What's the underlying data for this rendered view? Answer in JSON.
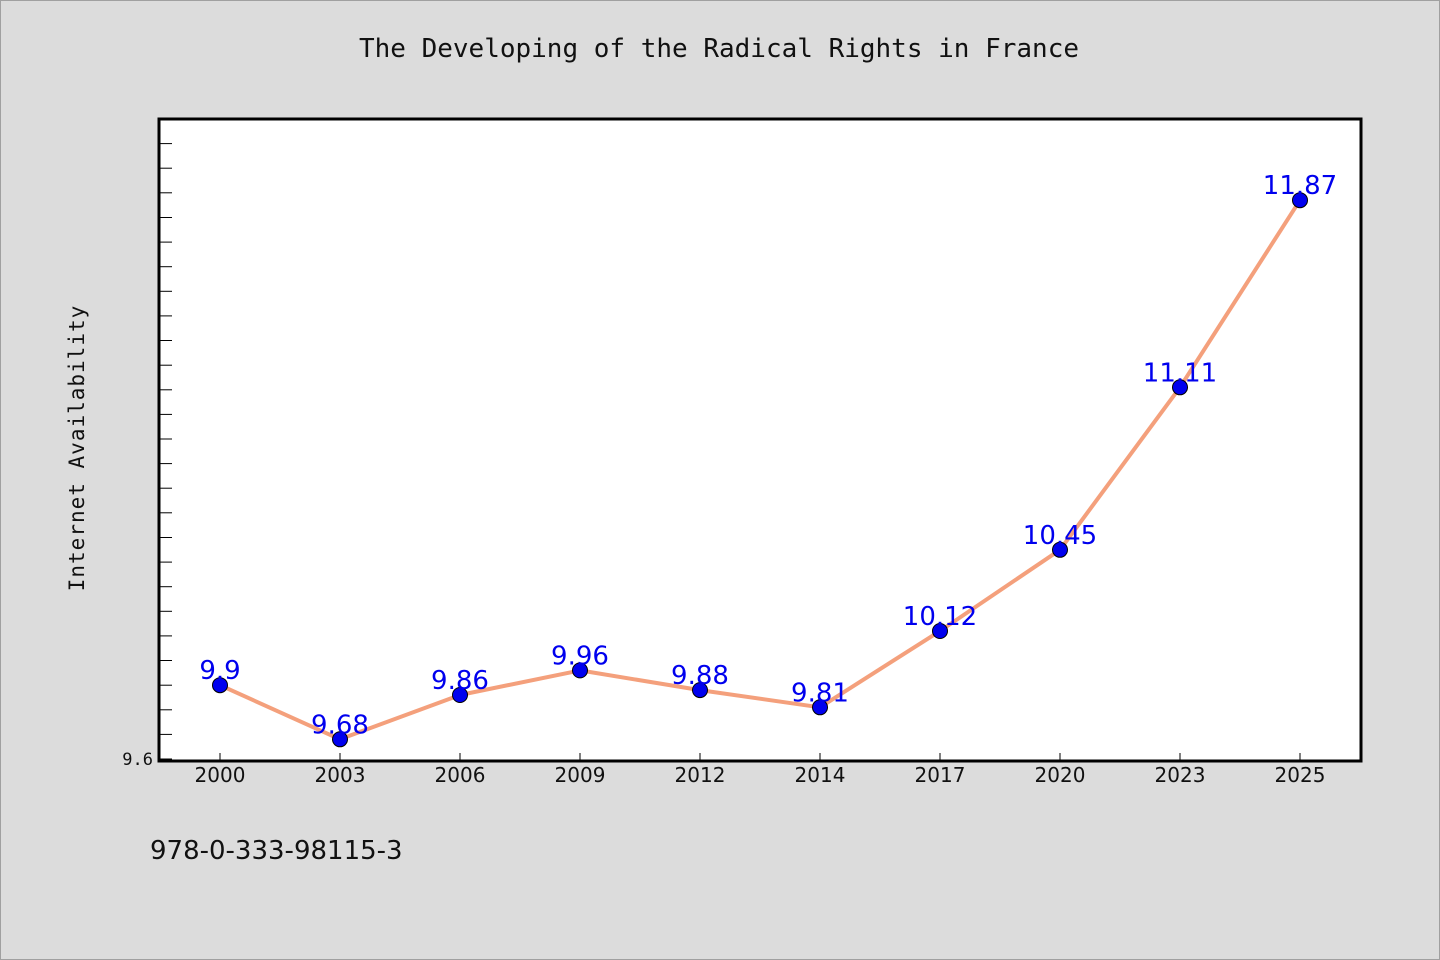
{
  "chart_data": {
    "type": "line",
    "title": "The Developing of the Radical Rights in France",
    "xlabel": "",
    "ylabel": "Internet Availability",
    "categories": [
      "2000",
      "2003",
      "2006",
      "2009",
      "2012",
      "2014",
      "2017",
      "2020",
      "2023",
      "2025"
    ],
    "series": [
      {
        "values": [
          9.9,
          9.68,
          9.86,
          9.96,
          9.88,
          9.81,
          10.12,
          10.45,
          11.11,
          11.87
        ],
        "data_labels": [
          "9.9",
          "9.68",
          "9.86",
          "9.96",
          "9.88",
          "9.81",
          "10.12",
          "10.45",
          "11.11",
          "11.87"
        ]
      }
    ],
    "ylim": [
      9.6,
      12.2
    ],
    "y_tick_labels": [
      "9.6"
    ],
    "grid": false,
    "colors": {
      "line": "#f4a07c",
      "marker": "#0000ee",
      "label": "#0000ee",
      "plot_bg": "#ffffff",
      "page_bg": "#dcdcdc"
    }
  },
  "footer": {
    "isbn": "978-0-333-98115-3"
  }
}
